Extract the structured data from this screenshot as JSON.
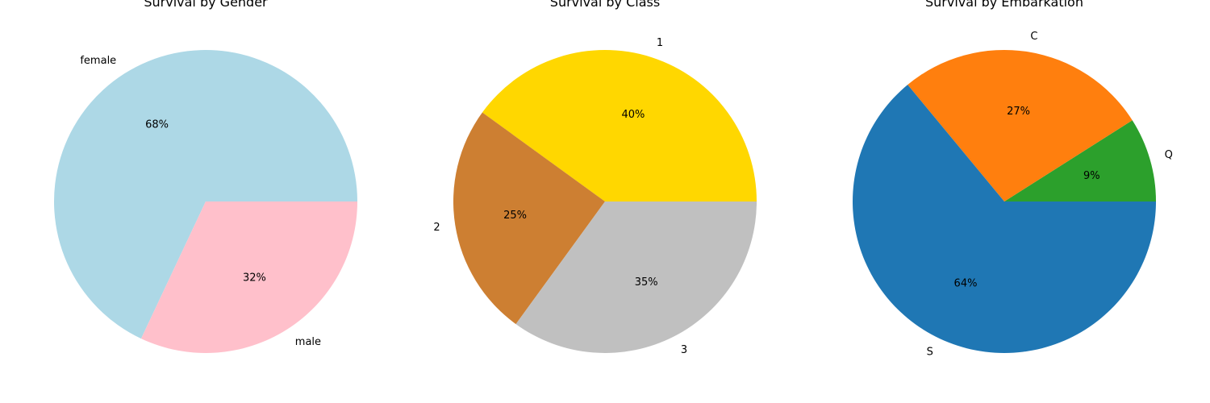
{
  "chart_data": [
    {
      "type": "pie",
      "title": "Survival by Gender",
      "labels": [
        "female",
        "male"
      ],
      "values": [
        68,
        32
      ],
      "pct_labels": [
        "68%",
        "32%"
      ],
      "colors": [
        "#add8e6",
        "#ffc0cb"
      ]
    },
    {
      "type": "pie",
      "title": "Survival by Class",
      "labels": [
        "1",
        "2",
        "3"
      ],
      "values": [
        40,
        25,
        35
      ],
      "pct_labels": [
        "40%",
        "25%",
        "35%"
      ],
      "colors": [
        "#ffd700",
        "#cd7f32",
        "#c0c0c0"
      ]
    },
    {
      "type": "pie",
      "title": "Survival by Embarkation",
      "labels": [
        "Q",
        "C",
        "S"
      ],
      "values": [
        9,
        27,
        64
      ],
      "pct_labels": [
        "9%",
        "27%",
        "64%"
      ],
      "colors": [
        "#2ca02c",
        "#ff7f0e",
        "#1f77b4"
      ]
    }
  ]
}
